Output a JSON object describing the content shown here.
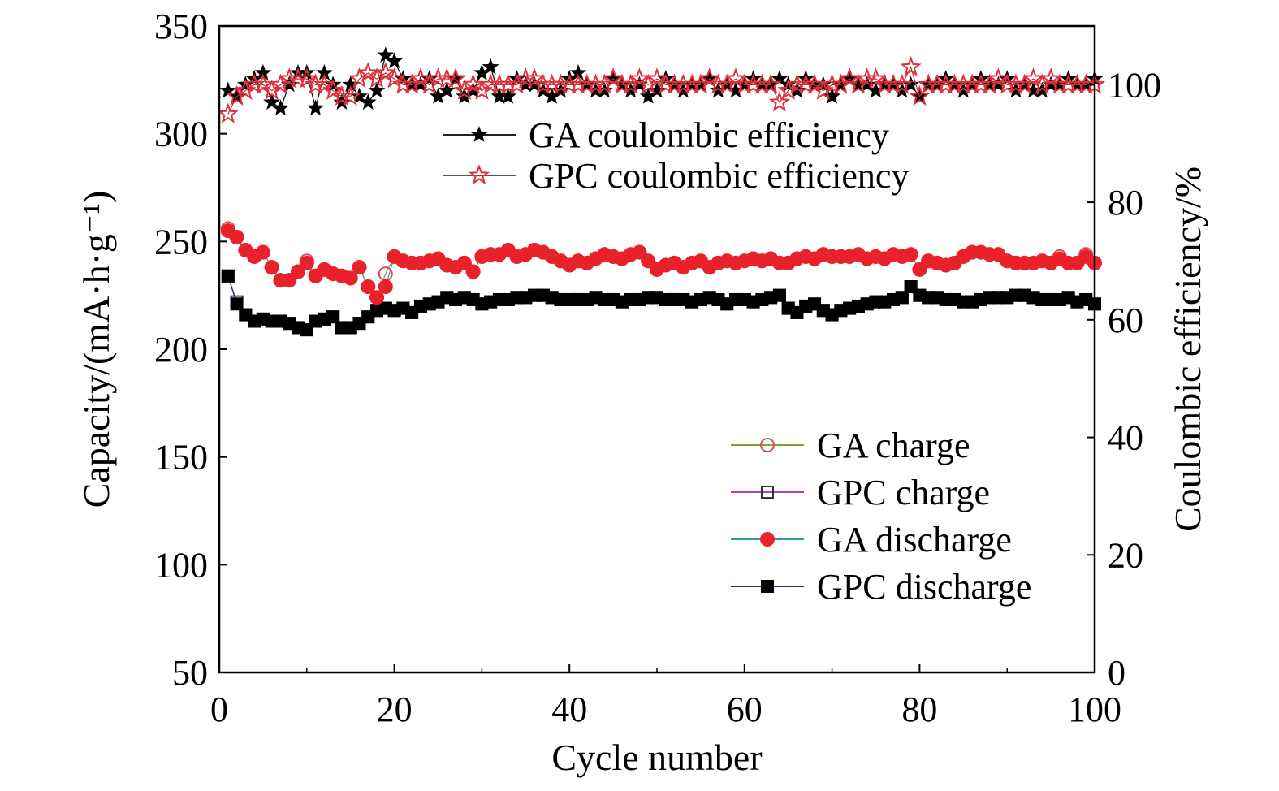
{
  "colors": {
    "ga_discharge": "#e8212a",
    "ga_charge_edge": "#d4505a",
    "ga_charge_line": "#8a9a40",
    "gpc_discharge": "#000000",
    "gpc_charge_line": "#b040c0",
    "gpc_discharge_line": "#2a2aa0",
    "ga_discharge_line": "#2aa0a0",
    "ga_ce": "#000000",
    "gpc_ce_edge": "#e0303c",
    "legend_line": "#333333"
  },
  "legend_top": [
    {
      "key": "ga_ce",
      "label": "GA coulombic efficiency"
    },
    {
      "key": "gpc_ce",
      "label": "GPC coulombic efficiency"
    }
  ],
  "legend_bottom": [
    {
      "key": "ga_charge",
      "label": "GA charge"
    },
    {
      "key": "gpc_charge",
      "label": "GPC charge"
    },
    {
      "key": "ga_discharge",
      "label": "GA discharge"
    },
    {
      "key": "gpc_discharge",
      "label": "GPC discharge"
    }
  ],
  "chart_data": {
    "type": "scatter",
    "xlabel": "Cycle number",
    "ylabel": "Capacity/(mA·h·g⁻¹)",
    "y2label": "Coulombic efficiency/%",
    "xlim": [
      0,
      100
    ],
    "ylim": [
      50,
      350
    ],
    "y2lim": [
      0,
      110
    ],
    "xticks": [
      0,
      20,
      40,
      60,
      80,
      100
    ],
    "yticks": [
      50,
      100,
      150,
      200,
      250,
      300,
      350
    ],
    "y2ticks": [
      0,
      20,
      40,
      60,
      80,
      100
    ],
    "x": [
      1,
      2,
      3,
      4,
      5,
      6,
      7,
      8,
      9,
      10,
      11,
      12,
      13,
      14,
      15,
      16,
      17,
      18,
      19,
      20,
      21,
      22,
      23,
      24,
      25,
      26,
      27,
      28,
      29,
      30,
      31,
      32,
      33,
      34,
      35,
      36,
      37,
      38,
      39,
      40,
      41,
      42,
      43,
      44,
      45,
      46,
      47,
      48,
      49,
      50,
      51,
      52,
      53,
      54,
      55,
      56,
      57,
      58,
      59,
      60,
      61,
      62,
      63,
      64,
      65,
      66,
      67,
      68,
      69,
      70,
      71,
      72,
      73,
      74,
      75,
      76,
      77,
      78,
      79,
      80,
      81,
      82,
      83,
      84,
      85,
      86,
      87,
      88,
      89,
      90,
      91,
      92,
      93,
      94,
      95,
      96,
      97,
      98,
      99,
      100
    ],
    "series": [
      {
        "name": "GA charge",
        "axis": "left",
        "marker": "circle-open",
        "values": [
          256,
          252,
          246,
          243,
          245,
          238,
          232,
          232,
          236,
          241,
          234,
          237,
          235,
          234,
          233,
          238,
          229,
          224,
          235,
          243,
          241,
          240,
          240,
          241,
          242,
          239,
          238,
          240,
          236,
          243,
          244,
          244,
          246,
          243,
          244,
          246,
          245,
          243,
          241,
          239,
          241,
          240,
          242,
          244,
          243,
          242,
          244,
          245,
          241,
          237,
          239,
          240,
          238,
          240,
          241,
          238,
          240,
          241,
          240,
          241,
          242,
          241,
          242,
          240,
          240,
          242,
          243,
          242,
          244,
          243,
          243,
          243,
          244,
          242,
          243,
          242,
          244,
          243,
          244,
          237,
          241,
          240,
          239,
          240,
          243,
          245,
          245,
          244,
          244,
          241,
          240,
          240,
          240,
          241,
          240,
          243,
          240,
          240,
          244,
          240
        ]
      },
      {
        "name": "GPC charge",
        "axis": "left",
        "marker": "square-open",
        "values": [
          234,
          222,
          216,
          213,
          214,
          213,
          213,
          212,
          210,
          209,
          213,
          214,
          215,
          210,
          210,
          212,
          215,
          218,
          219,
          218,
          219,
          217,
          220,
          221,
          222,
          224,
          223,
          224,
          223,
          221,
          222,
          223,
          223,
          224,
          224,
          225,
          225,
          224,
          223,
          223,
          223,
          223,
          224,
          223,
          223,
          222,
          223,
          223,
          224,
          224,
          223,
          223,
          223,
          222,
          223,
          224,
          223,
          221,
          223,
          223,
          222,
          223,
          224,
          225,
          219,
          217,
          220,
          221,
          218,
          216,
          218,
          219,
          220,
          221,
          222,
          222,
          223,
          224,
          229,
          225,
          224,
          224,
          223,
          223,
          222,
          222,
          223,
          224,
          224,
          224,
          225,
          225,
          224,
          223,
          223,
          223,
          224,
          222,
          223,
          221
        ]
      },
      {
        "name": "GA discharge",
        "axis": "left",
        "marker": "circle-filled",
        "values": [
          255,
          252,
          246,
          243,
          245,
          238,
          232,
          232,
          236,
          240,
          234,
          237,
          235,
          234,
          233,
          238,
          229,
          224,
          229,
          243,
          241,
          240,
          240,
          241,
          242,
          239,
          238,
          240,
          236,
          243,
          244,
          244,
          246,
          243,
          244,
          246,
          245,
          243,
          241,
          239,
          241,
          240,
          242,
          244,
          243,
          242,
          244,
          245,
          241,
          237,
          239,
          240,
          238,
          240,
          241,
          238,
          240,
          241,
          240,
          241,
          242,
          241,
          242,
          240,
          240,
          242,
          243,
          242,
          244,
          243,
          243,
          243,
          244,
          242,
          243,
          242,
          244,
          243,
          244,
          237,
          241,
          240,
          239,
          240,
          243,
          245,
          245,
          244,
          244,
          241,
          240,
          240,
          240,
          241,
          240,
          242,
          240,
          240,
          243,
          240
        ]
      },
      {
        "name": "GPC discharge",
        "axis": "left",
        "marker": "square-filled",
        "values": [
          234,
          221,
          216,
          213,
          214,
          213,
          213,
          212,
          210,
          209,
          213,
          214,
          215,
          210,
          210,
          212,
          215,
          218,
          219,
          218,
          219,
          217,
          220,
          221,
          222,
          224,
          223,
          224,
          223,
          221,
          222,
          223,
          223,
          224,
          224,
          225,
          225,
          224,
          223,
          223,
          223,
          223,
          224,
          223,
          223,
          222,
          223,
          223,
          224,
          224,
          223,
          223,
          223,
          222,
          223,
          224,
          223,
          221,
          223,
          223,
          222,
          223,
          224,
          225,
          219,
          217,
          220,
          221,
          218,
          216,
          218,
          219,
          220,
          221,
          222,
          222,
          223,
          224,
          229,
          225,
          224,
          224,
          223,
          223,
          222,
          222,
          223,
          224,
          224,
          224,
          225,
          225,
          224,
          223,
          223,
          223,
          224,
          222,
          223,
          221
        ]
      },
      {
        "name": "GA coulombic efficiency",
        "axis": "right",
        "marker": "star-filled",
        "values": [
          99,
          98,
          100,
          101,
          102,
          97,
          96,
          100,
          102,
          102,
          96,
          102,
          100,
          97,
          100,
          98,
          97,
          99,
          105,
          104,
          101,
          100,
          100,
          101,
          98,
          99,
          101,
          98,
          99,
          102,
          103,
          98,
          98,
          101,
          100,
          100,
          99,
          98,
          99,
          101,
          102,
          100,
          99,
          99,
          101,
          100,
          99,
          100,
          98,
          99,
          101,
          100,
          99,
          100,
          100,
          101,
          99,
          100,
          99,
          100,
          101,
          100,
          100,
          101,
          100,
          99,
          101,
          100,
          100,
          98,
          100,
          101,
          100,
          100,
          99,
          100,
          100,
          99,
          100,
          98,
          100,
          100,
          101,
          100,
          99,
          100,
          101,
          100,
          100,
          101,
          99,
          100,
          99,
          99,
          100,
          100,
          101,
          100,
          100,
          101
        ]
      },
      {
        "name": "GPC coulombic efficiency",
        "axis": "right",
        "marker": "star-open",
        "values": [
          95,
          98,
          99,
          100,
          100,
          99,
          100,
          101,
          101,
          101,
          100,
          100,
          99,
          98,
          98,
          101,
          102,
          101,
          102,
          101,
          100,
          100,
          101,
          100,
          101,
          101,
          101,
          99,
          100,
          99,
          100,
          100,
          100,
          100,
          101,
          101,
          100,
          100,
          100,
          100,
          100,
          100,
          100,
          100,
          101,
          100,
          100,
          101,
          100,
          101,
          100,
          100,
          100,
          100,
          100,
          101,
          100,
          100,
          101,
          100,
          100,
          100,
          100,
          97,
          99,
          100,
          100,
          100,
          99,
          100,
          100,
          101,
          100,
          101,
          101,
          100,
          100,
          100,
          103,
          98,
          100,
          100,
          100,
          100,
          100,
          100,
          100,
          100,
          101,
          100,
          100,
          100,
          101,
          100,
          101,
          100,
          100,
          100,
          100,
          100
        ]
      }
    ]
  }
}
